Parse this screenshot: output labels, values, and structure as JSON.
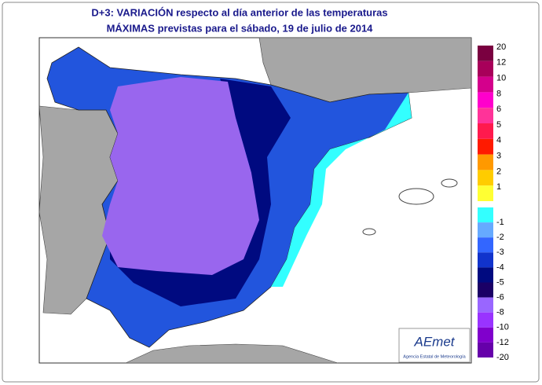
{
  "header": {
    "title_line_1": "D+3: VARIACIÓN respecto al día anterior de las temperaturas",
    "title_line_2": "MÁXIMAS previstas para el sábado, 19 de julio de 2014"
  },
  "legend": {
    "positive": [
      {
        "label": 20,
        "color": "#7a0040"
      },
      {
        "label": 12,
        "color": "#a8005a"
      },
      {
        "label": 10,
        "color": "#d4008c"
      },
      {
        "label": 8,
        "color": "#ff00cc"
      },
      {
        "label": 6,
        "color": "#ff3399"
      },
      {
        "label": 5,
        "color": "#ff1a4d"
      },
      {
        "label": 4,
        "color": "#ff1a00"
      },
      {
        "label": 3,
        "color": "#ff9900"
      },
      {
        "label": 2,
        "color": "#ffcc00"
      },
      {
        "label": 1,
        "color": "#ffff33"
      }
    ],
    "negative": [
      {
        "label": -1,
        "color": "#33ffff"
      },
      {
        "label": -2,
        "color": "#66aaff"
      },
      {
        "label": -3,
        "color": "#3366ff"
      },
      {
        "label": -4,
        "color": "#1133cc"
      },
      {
        "label": -5,
        "color": "#000a80"
      },
      {
        "label": -6,
        "color": "#1a0066"
      },
      {
        "label": -8,
        "color": "#9966ff"
      },
      {
        "label": -10,
        "color": "#9933ff"
      },
      {
        "label": -12,
        "color": "#8000cc"
      },
      {
        "label": -20,
        "color": "#6600aa"
      }
    ]
  },
  "logo": {
    "brand": "AEmet",
    "subtitle": "Agencia Estatal de Meteorología"
  }
}
